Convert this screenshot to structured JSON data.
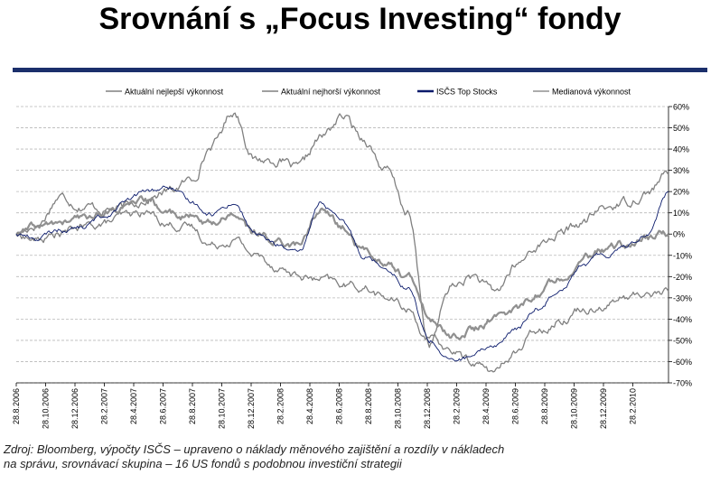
{
  "header": {
    "title": "Srovnání s „Focus Investing“ fondy"
  },
  "source": {
    "line1": "Zdroj: Bloomberg, výpočty ISČS – upraveno o náklady měnového zajištění a rozdíly v nákladech",
    "line2": "na správu, srovnávací skupina – 16 US fondů s podobnou investiční strategii"
  },
  "chart_data": {
    "type": "line",
    "title": "",
    "xlabel": "",
    "ylabel": "",
    "ylim": [
      -70,
      60
    ],
    "grid": true,
    "legend_position": "top",
    "y_ticks": [
      "60%",
      "50%",
      "40%",
      "30%",
      "20%",
      "10%",
      "0%",
      "-10%",
      "-20%",
      "-30%",
      "-40%",
      "-50%",
      "-60%",
      "-70%"
    ],
    "x_ticks": [
      "28.8.2006",
      "28.10.2006",
      "28.12.2006",
      "28.2.2007",
      "28.4.2007",
      "28.6.2007",
      "28.8.2007",
      "28.10.2007",
      "28.12.2007",
      "28.2.2008",
      "28.4.2008",
      "28.6.2008",
      "28.8.2008",
      "28.10.2008",
      "28.12.2008",
      "28.2.2009",
      "28.4.2009",
      "28.6.2009",
      "28.8.2009",
      "28.10.2009",
      "28.12.2009",
      "28.2.2010"
    ],
    "series": [
      {
        "name": "Aktuální nejlepší výkonnost",
        "color": "#808080",
        "values": [
          0,
          5,
          18,
          14,
          12,
          12,
          17,
          20,
          25,
          42,
          58,
          35,
          35,
          30,
          45,
          55,
          45,
          30,
          10,
          -52,
          -25,
          -20,
          -28,
          -15,
          -5,
          0,
          5,
          12,
          15,
          20,
          28
        ]
      },
      {
        "name": "Aktuální nejhorší výkonnost",
        "color": "#808080",
        "values": [
          0,
          -3,
          0,
          3,
          5,
          8,
          10,
          5,
          3,
          -5,
          -2,
          -10,
          -15,
          -20,
          -22,
          -24,
          -25,
          -30,
          -35,
          -50,
          -55,
          -60,
          -65,
          -55,
          -45,
          -40,
          -35,
          -33,
          -30,
          -28,
          -27
        ]
      },
      {
        "name": "ISČS Top Stocks",
        "color": "#0a1a6b",
        "values": [
          0,
          -2,
          2,
          3,
          8,
          15,
          20,
          22,
          15,
          10,
          15,
          0,
          -5,
          -10,
          15,
          5,
          -10,
          -15,
          -25,
          -50,
          -60,
          -58,
          -52,
          -45,
          -35,
          -25,
          -15,
          -10,
          -5,
          0,
          20
        ]
      },
      {
        "name": "Medianová výkonnost",
        "color": "#909090",
        "values": [
          0,
          3,
          5,
          7,
          10,
          12,
          15,
          10,
          8,
          5,
          10,
          0,
          -3,
          -5,
          12,
          3,
          -8,
          -13,
          -20,
          -40,
          -48,
          -45,
          -40,
          -35,
          -28,
          -20,
          -12,
          -8,
          -5,
          -2,
          0
        ]
      }
    ]
  }
}
